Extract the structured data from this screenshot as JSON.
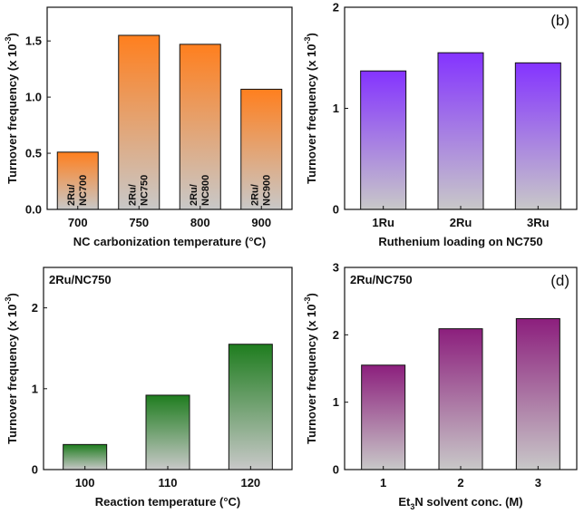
{
  "chart_data": [
    {
      "type": "bar",
      "panel": "a",
      "panel_label": "",
      "annotation": "",
      "categories": [
        "700",
        "750",
        "800",
        "900"
      ],
      "values": [
        0.51,
        1.55,
        1.47,
        1.07
      ],
      "bar_labels": [
        [
          "2Ru/",
          "NC700"
        ],
        [
          "2Ru/",
          "NC750"
        ],
        [
          "2Ru/",
          "NC800"
        ],
        [
          "2Ru/",
          "NC900"
        ]
      ],
      "color": "#ff7f1e",
      "ylabel": "Turnover frequency (x 10",
      "ylabel_exp": "-3",
      "ylabel_end": ")",
      "xlabel": "NC carbonization temperature (°C)",
      "ylim": [
        0,
        1.8
      ],
      "yticks": [
        "0.0",
        "0.5",
        "1.0",
        "1.5"
      ],
      "ytick_values": [
        0,
        0.5,
        1.0,
        1.5
      ]
    },
    {
      "type": "bar",
      "panel": "b",
      "panel_label": "(b)",
      "annotation": "",
      "categories": [
        "1Ru",
        "2Ru",
        "3Ru"
      ],
      "values": [
        1.37,
        1.55,
        1.45
      ],
      "color": "#8433ff",
      "ylabel": "Turnover frequency (x 10",
      "ylabel_exp": "-3",
      "ylabel_end": ")",
      "xlabel": "Ruthenium loading on NC750",
      "ylim": [
        0,
        2
      ],
      "yticks": [
        "0",
        "1",
        "2"
      ],
      "ytick_values": [
        0,
        1,
        2
      ]
    },
    {
      "type": "bar",
      "panel": "c",
      "panel_label": "",
      "annotation": "2Ru/NC750",
      "categories": [
        "100",
        "110",
        "120"
      ],
      "values": [
        0.31,
        0.92,
        1.55
      ],
      "color": "#1f7d1f",
      "ylabel": "Turnover frequency (x 10",
      "ylabel_exp": "-3",
      "ylabel_end": ")",
      "xlabel": "Reaction temperature (°C)",
      "ylim": [
        0,
        2.5
      ],
      "yticks": [
        "0",
        "1",
        "2"
      ],
      "ytick_values": [
        0,
        1,
        2
      ]
    },
    {
      "type": "bar",
      "panel": "d",
      "panel_label": "(d)",
      "annotation": "2Ru/NC750",
      "categories": [
        "1",
        "2",
        "3"
      ],
      "values": [
        1.55,
        2.09,
        2.24
      ],
      "color": "#8c1f7d",
      "ylabel": "Turnover frequency (x 10",
      "ylabel_exp": "-3",
      "ylabel_end": ")",
      "xlabel_parts": [
        "Et",
        "3",
        "N solvent conc. (M)"
      ],
      "xlabel": "Et3N solvent conc. (M)",
      "ylim": [
        0,
        3
      ],
      "yticks": [
        "0",
        "1",
        "2",
        "3"
      ],
      "ytick_values": [
        0,
        1,
        2,
        3
      ]
    }
  ]
}
